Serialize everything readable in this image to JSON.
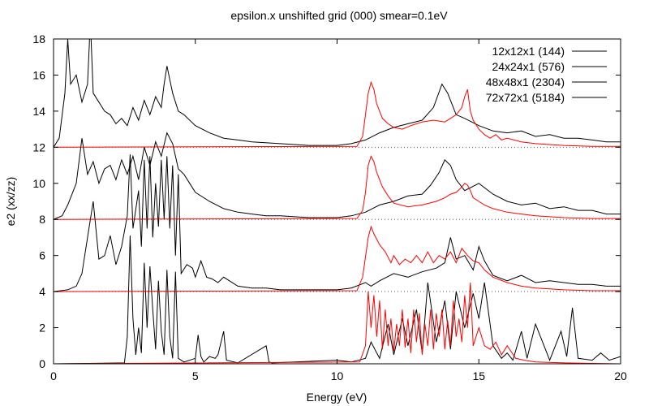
{
  "chart_data": {
    "type": "line",
    "title": "epsilon.x unshifted grid (000) smear=0.1eV",
    "xlabel": "Energy (eV)",
    "ylabel": "e2 (xx/zz)",
    "xlim": [
      0,
      20
    ],
    "ylim": [
      0,
      18
    ],
    "xticks": [
      0,
      5,
      10,
      15,
      20
    ],
    "yticks": [
      0,
      2,
      4,
      6,
      8,
      10,
      12,
      14,
      16,
      18
    ],
    "grid": false,
    "legend_position": "top-right",
    "series": [
      {
        "name": "12x12x1 (144)",
        "offset": 0,
        "color": "#000000",
        "component": "xx",
        "x": [
          0,
          2.5,
          2.6,
          2.7,
          2.8,
          2.9,
          3.0,
          3.1,
          3.2,
          3.3,
          3.4,
          3.5,
          3.6,
          3.7,
          3.8,
          3.9,
          4.0,
          4.1,
          4.2,
          4.3,
          4.4,
          4.6,
          5.0,
          5.1,
          5.2,
          5.3,
          5.5,
          5.7,
          5.8,
          6.0,
          6.1,
          6.5,
          7.5,
          7.6,
          7.7,
          8.5,
          10.0,
          10.5,
          11.0,
          11.2,
          11.5,
          11.8,
          12.0,
          12.3,
          12.5,
          12.8,
          13.0,
          13.2,
          13.5,
          13.8,
          14.0,
          14.2,
          14.5,
          14.8,
          15.0,
          15.2,
          15.5,
          15.8,
          16.0,
          16.2,
          16.5,
          16.7,
          17.0,
          17.5,
          17.9,
          18.1,
          18.3,
          18.5,
          19.0,
          19.3,
          19.6,
          20.0
        ],
        "y": [
          0,
          0.05,
          1.5,
          7.1,
          2.5,
          0.5,
          2.0,
          0.6,
          5.6,
          2.0,
          5.4,
          3.0,
          0.8,
          4.6,
          1.8,
          0.5,
          5.2,
          1.5,
          0.3,
          5.1,
          0.3,
          0.1,
          0.3,
          1.6,
          0.4,
          0.1,
          0.4,
          0.3,
          0.5,
          1.8,
          0.2,
          0.05,
          1.0,
          0.1,
          0.05,
          0.1,
          0.2,
          0.1,
          0.3,
          1.2,
          0.3,
          2.2,
          0.5,
          2.5,
          1.0,
          3.0,
          0.6,
          4.5,
          1.2,
          3.5,
          0.8,
          4.0,
          2.0,
          3.9,
          2.5,
          4.5,
          1.0,
          0.3,
          0.6,
          0.2,
          1.8,
          0.3,
          2.2,
          0.2,
          1.8,
          0.4,
          3.1,
          0.3,
          0.2,
          0.6,
          0.2,
          0.4
        ]
      },
      {
        "name": "24x24x1 (576)",
        "offset": 4,
        "color": "#000000",
        "component": "xx",
        "x": [
          0,
          0.5,
          0.8,
          1.0,
          1.2,
          1.4,
          1.6,
          1.8,
          2.0,
          2.2,
          2.4,
          2.6,
          2.7,
          2.8,
          3.0,
          3.1,
          3.2,
          3.3,
          3.4,
          3.5,
          3.6,
          3.7,
          3.8,
          3.9,
          4.0,
          4.1,
          4.2,
          4.3,
          4.4,
          4.5,
          4.7,
          4.9,
          5.0,
          5.2,
          5.4,
          5.6,
          5.8,
          6.0,
          6.5,
          7.0,
          7.5,
          8.0,
          9.0,
          10.0,
          10.5,
          11.0,
          11.2,
          11.5,
          12.0,
          12.5,
          13.0,
          13.5,
          13.8,
          14.0,
          14.2,
          14.5,
          14.8,
          15.0,
          15.2,
          15.5,
          16.0,
          16.5,
          17.0,
          17.5,
          18.0,
          18.5,
          19.0,
          19.5,
          20.0
        ],
        "y": [
          0,
          0.1,
          0.3,
          1.0,
          3.0,
          5.0,
          1.8,
          2.0,
          3.1,
          1.5,
          2.5,
          4.2,
          7.6,
          3.5,
          5.6,
          2.5,
          7.3,
          3.5,
          7.5,
          3.0,
          6.0,
          3.6,
          7.3,
          4.0,
          7.5,
          3.5,
          7.0,
          2.0,
          6.5,
          1.0,
          1.5,
          1.3,
          0.8,
          1.7,
          0.8,
          0.7,
          0.5,
          0.8,
          0.3,
          0.2,
          0.2,
          0.1,
          0.1,
          0.1,
          0.2,
          0.5,
          0.3,
          0.6,
          1.0,
          0.8,
          1.1,
          1.3,
          1.6,
          3.0,
          1.8,
          2.0,
          1.2,
          2.5,
          1.7,
          0.9,
          0.6,
          0.9,
          0.5,
          0.6,
          0.5,
          0.4,
          0.4,
          0.3,
          0.3
        ]
      },
      {
        "name": "48x48x1 (2304)",
        "offset": 8,
        "color": "#000000",
        "component": "xx",
        "x": [
          0,
          0.3,
          0.5,
          0.8,
          1.0,
          1.2,
          1.4,
          1.6,
          1.8,
          2.0,
          2.2,
          2.4,
          2.6,
          2.8,
          3.0,
          3.2,
          3.4,
          3.6,
          3.8,
          4.0,
          4.2,
          4.4,
          4.6,
          4.8,
          5.0,
          5.5,
          6.0,
          6.5,
          7.0,
          7.5,
          8.0,
          9.0,
          10.0,
          10.5,
          11.0,
          11.5,
          12.0,
          12.5,
          13.0,
          13.3,
          13.6,
          13.8,
          14.0,
          14.2,
          14.5,
          15.0,
          15.5,
          16.0,
          16.5,
          17.0,
          17.5,
          18.0,
          18.5,
          19.0,
          19.5,
          20.0
        ],
        "y": [
          0,
          0.2,
          0.8,
          2.0,
          4.5,
          2.5,
          3.2,
          2.0,
          2.8,
          3.0,
          2.2,
          3.3,
          2.5,
          3.5,
          2.2,
          4.0,
          3.0,
          4.3,
          3.5,
          4.8,
          4.2,
          2.8,
          2.5,
          2.0,
          1.5,
          1.0,
          0.6,
          0.4,
          0.3,
          0.2,
          0.2,
          0.1,
          0.1,
          0.2,
          0.4,
          0.8,
          1.0,
          1.3,
          1.4,
          1.9,
          2.6,
          3.3,
          3.0,
          2.2,
          1.6,
          2.0,
          1.4,
          1.0,
          0.8,
          0.9,
          0.6,
          0.7,
          0.5,
          0.5,
          0.3,
          0.3
        ]
      },
      {
        "name": "72x72x1 (5184)",
        "offset": 12,
        "color": "#000000",
        "component": "xx",
        "x": [
          0,
          0.2,
          0.4,
          0.5,
          0.6,
          0.8,
          1.0,
          1.2,
          1.3,
          1.4,
          1.6,
          1.8,
          2.0,
          2.2,
          2.4,
          2.6,
          2.8,
          3.0,
          3.2,
          3.4,
          3.6,
          3.8,
          3.9,
          4.0,
          4.2,
          4.4,
          4.6,
          5.0,
          5.5,
          6.0,
          6.5,
          7.0,
          8.0,
          9.0,
          10.0,
          10.5,
          11.0,
          11.5,
          12.0,
          12.5,
          13.0,
          13.4,
          13.7,
          13.9,
          14.2,
          14.5,
          15.0,
          15.5,
          16.0,
          16.5,
          17.0,
          17.5,
          18.0,
          18.5,
          19.0,
          19.5,
          20.0
        ],
        "y": [
          0,
          0.5,
          3.0,
          6.0,
          3.5,
          4.0,
          2.5,
          3.5,
          7.0,
          3.0,
          2.5,
          2.0,
          1.8,
          1.3,
          1.6,
          1.2,
          2.2,
          1.5,
          2.6,
          1.8,
          2.8,
          2.2,
          3.5,
          4.5,
          3.0,
          2.0,
          1.8,
          1.2,
          0.8,
          0.5,
          0.4,
          0.3,
          0.2,
          0.1,
          0.1,
          0.2,
          0.4,
          0.8,
          1.1,
          1.3,
          1.5,
          2.2,
          3.5,
          3.0,
          1.8,
          1.6,
          1.2,
          0.9,
          0.8,
          0.9,
          0.6,
          0.7,
          0.5,
          0.5,
          0.4,
          0.3,
          0.3
        ]
      },
      {
        "name": "",
        "offset": 0,
        "color": "#ff0000",
        "component": "zz",
        "x": [
          0,
          10.8,
          11.0,
          11.1,
          11.2,
          11.3,
          11.4,
          11.5,
          11.6,
          11.7,
          11.8,
          11.9,
          12.0,
          12.1,
          12.2,
          12.3,
          12.4,
          12.5,
          12.6,
          12.7,
          12.8,
          12.9,
          13.0,
          13.1,
          13.2,
          13.3,
          13.4,
          13.5,
          13.6,
          13.7,
          13.8,
          13.9,
          14.0,
          14.1,
          14.2,
          14.3,
          14.4,
          14.5,
          14.6,
          14.7,
          14.8,
          15.0,
          15.2,
          15.4,
          15.6,
          15.8,
          16.0,
          16.3,
          16.6,
          17.0,
          18.0,
          20.0
        ],
        "y": [
          0,
          0.1,
          1.0,
          4.0,
          2.0,
          3.8,
          1.5,
          3.5,
          0.8,
          3.0,
          1.0,
          2.5,
          0.7,
          2.2,
          1.0,
          3.0,
          0.9,
          2.5,
          0.6,
          3.0,
          1.2,
          2.8,
          0.5,
          2.2,
          1.0,
          3.0,
          0.8,
          2.8,
          1.5,
          3.0,
          0.8,
          2.4,
          1.0,
          3.5,
          1.5,
          2.5,
          1.2,
          3.8,
          2.0,
          4.5,
          1.0,
          2.0,
          1.0,
          0.8,
          1.2,
          0.5,
          1.0,
          0.3,
          0.2,
          0.1,
          0.05,
          0
        ]
      },
      {
        "name": "",
        "offset": 4,
        "color": "#ff0000",
        "component": "zz",
        "x": [
          0,
          10.7,
          10.9,
          11.1,
          11.2,
          11.3,
          11.5,
          11.7,
          11.9,
          12.0,
          12.2,
          12.4,
          12.6,
          12.8,
          13.0,
          13.2,
          13.4,
          13.6,
          13.8,
          14.0,
          14.2,
          14.4,
          14.6,
          14.8,
          15.0,
          15.2,
          15.5,
          16.0,
          16.5,
          17.0,
          17.5,
          18.0,
          19.0,
          20.0
        ],
        "y": [
          0,
          0.05,
          0.8,
          3.0,
          3.6,
          3.2,
          2.6,
          2.2,
          1.6,
          2.0,
          1.5,
          1.8,
          1.6,
          2.0,
          1.6,
          2.2,
          1.6,
          2.0,
          1.8,
          2.2,
          1.6,
          2.4,
          2.0,
          1.7,
          1.6,
          1.2,
          0.8,
          0.5,
          0.3,
          0.2,
          0.15,
          0.1,
          0.05,
          0.05
        ]
      },
      {
        "name": "",
        "offset": 8,
        "color": "#ff0000",
        "component": "zz",
        "x": [
          0,
          10.7,
          10.9,
          11.0,
          11.1,
          11.2,
          11.3,
          11.4,
          11.6,
          11.8,
          12.0,
          12.5,
          13.0,
          13.5,
          13.8,
          14.0,
          14.2,
          14.4,
          14.5,
          14.6,
          14.7,
          14.8,
          15.0,
          15.2,
          15.5,
          16.0,
          16.5,
          17.0,
          17.5,
          18.0,
          19.0,
          20.0
        ],
        "y": [
          0,
          0.05,
          0.5,
          1.5,
          3.0,
          3.5,
          3.2,
          2.6,
          1.8,
          1.3,
          0.9,
          0.7,
          0.8,
          1.0,
          1.2,
          1.4,
          1.5,
          1.8,
          2.0,
          1.9,
          1.6,
          1.2,
          1.0,
          0.8,
          0.6,
          0.4,
          0.3,
          0.2,
          0.15,
          0.1,
          0.05,
          0.05
        ]
      },
      {
        "name": "",
        "offset": 12,
        "color": "#ff0000",
        "component": "zz",
        "x": [
          0,
          10.7,
          10.9,
          11.0,
          11.1,
          11.2,
          11.3,
          11.4,
          11.6,
          11.8,
          12.0,
          12.3,
          12.6,
          13.0,
          13.4,
          13.8,
          14.0,
          14.2,
          14.4,
          14.5,
          14.6,
          14.7,
          14.8,
          15.0,
          15.2,
          15.4,
          15.6,
          15.8,
          16.0,
          16.5,
          17.0,
          17.5,
          18.0,
          19.0,
          20.0
        ],
        "y": [
          0,
          0.05,
          0.6,
          1.8,
          3.0,
          3.6,
          3.2,
          2.4,
          1.6,
          1.3,
          1.1,
          1.0,
          1.2,
          1.4,
          1.5,
          1.4,
          1.6,
          1.8,
          2.2,
          2.8,
          3.2,
          2.0,
          1.5,
          1.0,
          0.7,
          0.5,
          0.7,
          0.4,
          0.5,
          0.3,
          0.2,
          0.15,
          0.1,
          0.05,
          0.05
        ]
      }
    ]
  }
}
